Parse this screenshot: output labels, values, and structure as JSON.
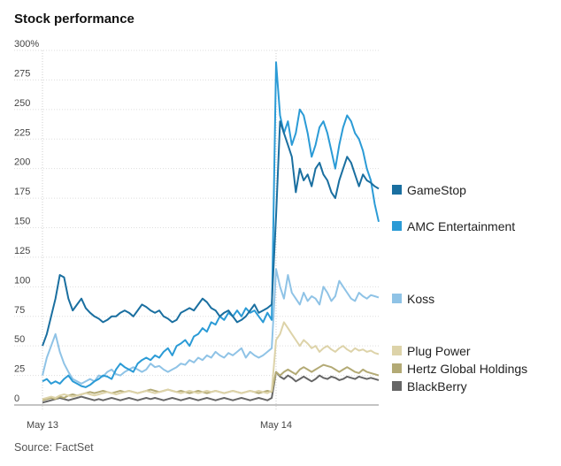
{
  "chart_data": {
    "type": "line",
    "title": "Stock performance",
    "source": "Source: FactSet",
    "xlabel": "",
    "ylabel": "",
    "ylim": [
      0,
      300
    ],
    "yticks": [
      "0",
      "25",
      "50",
      "75",
      "100",
      "125",
      "150",
      "175",
      "200",
      "225",
      "250",
      "275",
      "300%"
    ],
    "xticks": [
      "May 13",
      "May 14"
    ],
    "grid": true,
    "legend_position": "right",
    "series": [
      {
        "name": "GameStop",
        "color": "#1a6fa0",
        "values": [
          50,
          60,
          75,
          90,
          110,
          108,
          90,
          80,
          85,
          90,
          82,
          78,
          75,
          73,
          70,
          72,
          75,
          75,
          78,
          80,
          78,
          75,
          80,
          85,
          83,
          80,
          78,
          80,
          75,
          73,
          70,
          72,
          78,
          80,
          82,
          80,
          85,
          90,
          87,
          82,
          80,
          75,
          78,
          80,
          75,
          70,
          72,
          75,
          80,
          85,
          78,
          80,
          82,
          85,
          160,
          240,
          230,
          220,
          210,
          180,
          200,
          190,
          195,
          185,
          200,
          205,
          195,
          190,
          180,
          175,
          190,
          200,
          210,
          205,
          195,
          185,
          195,
          190,
          188,
          185,
          183
        ]
      },
      {
        "name": "AMC Entertainment",
        "color": "#2b9bd6",
        "values": [
          20,
          22,
          18,
          20,
          18,
          22,
          25,
          20,
          18,
          16,
          15,
          17,
          20,
          22,
          25,
          24,
          22,
          30,
          35,
          32,
          30,
          28,
          35,
          38,
          40,
          38,
          42,
          40,
          45,
          48,
          42,
          50,
          52,
          55,
          50,
          58,
          60,
          65,
          62,
          70,
          68,
          75,
          72,
          78,
          75,
          80,
          75,
          82,
          78,
          80,
          75,
          70,
          78,
          72,
          290,
          245,
          230,
          240,
          220,
          230,
          250,
          245,
          230,
          210,
          220,
          235,
          240,
          230,
          215,
          200,
          220,
          235,
          245,
          240,
          230,
          225,
          215,
          200,
          190,
          170,
          155
        ]
      },
      {
        "name": "Koss",
        "color": "#8fc3e6",
        "values": [
          25,
          40,
          50,
          60,
          45,
          35,
          28,
          22,
          20,
          18,
          20,
          22,
          20,
          25,
          24,
          28,
          30,
          26,
          25,
          28,
          30,
          32,
          30,
          28,
          30,
          35,
          32,
          33,
          30,
          28,
          30,
          32,
          35,
          34,
          38,
          36,
          40,
          38,
          42,
          40,
          45,
          42,
          40,
          44,
          42,
          45,
          48,
          40,
          45,
          42,
          40,
          42,
          45,
          48,
          115,
          100,
          90,
          110,
          95,
          90,
          85,
          95,
          88,
          92,
          90,
          85,
          100,
          95,
          88,
          92,
          105,
          100,
          95,
          90,
          88,
          95,
          92,
          90,
          93,
          92,
          91
        ]
      },
      {
        "name": "Plug Power",
        "color": "#ddd3a9",
        "values": [
          5,
          6,
          7,
          6,
          8,
          9,
          8,
          7,
          8,
          9,
          10,
          9,
          8,
          9,
          10,
          11,
          10,
          9,
          10,
          11,
          12,
          11,
          10,
          11,
          12,
          11,
          10,
          11,
          12,
          13,
          12,
          11,
          10,
          11,
          12,
          11,
          10,
          11,
          12,
          11,
          12,
          11,
          10,
          11,
          12,
          11,
          10,
          11,
          12,
          11,
          12,
          11,
          10,
          12,
          55,
          60,
          70,
          65,
          60,
          55,
          50,
          55,
          52,
          48,
          50,
          45,
          48,
          50,
          47,
          45,
          48,
          50,
          47,
          45,
          48,
          46,
          47,
          45,
          46,
          44,
          43
        ]
      },
      {
        "name": "Hertz Global Holdings",
        "color": "#b3aa75",
        "values": [
          4,
          5,
          6,
          5,
          7,
          6,
          8,
          9,
          8,
          9,
          10,
          11,
          10,
          11,
          12,
          11,
          10,
          11,
          12,
          11,
          12,
          11,
          10,
          11,
          12,
          13,
          12,
          11,
          12,
          13,
          12,
          11,
          12,
          11,
          10,
          11,
          12,
          11,
          10,
          11,
          12,
          11,
          10,
          11,
          12,
          11,
          10,
          11,
          12,
          11,
          10,
          11,
          12,
          11,
          28,
          25,
          28,
          30,
          28,
          26,
          30,
          32,
          30,
          28,
          30,
          32,
          34,
          33,
          32,
          30,
          28,
          30,
          32,
          30,
          28,
          27,
          30,
          28,
          27,
          26,
          25
        ]
      },
      {
        "name": "BlackBerry",
        "color": "#666666",
        "values": [
          2,
          3,
          4,
          5,
          6,
          5,
          4,
          5,
          6,
          7,
          6,
          5,
          4,
          5,
          4,
          5,
          6,
          5,
          4,
          5,
          6,
          5,
          4,
          5,
          6,
          5,
          6,
          5,
          4,
          5,
          6,
          5,
          4,
          5,
          6,
          5,
          4,
          5,
          6,
          5,
          4,
          5,
          6,
          5,
          4,
          5,
          6,
          5,
          4,
          5,
          6,
          5,
          4,
          6,
          28,
          24,
          22,
          25,
          23,
          20,
          22,
          24,
          22,
          20,
          22,
          25,
          23,
          22,
          24,
          23,
          21,
          22,
          24,
          23,
          22,
          24,
          23,
          22,
          23,
          22,
          21
        ]
      }
    ]
  }
}
